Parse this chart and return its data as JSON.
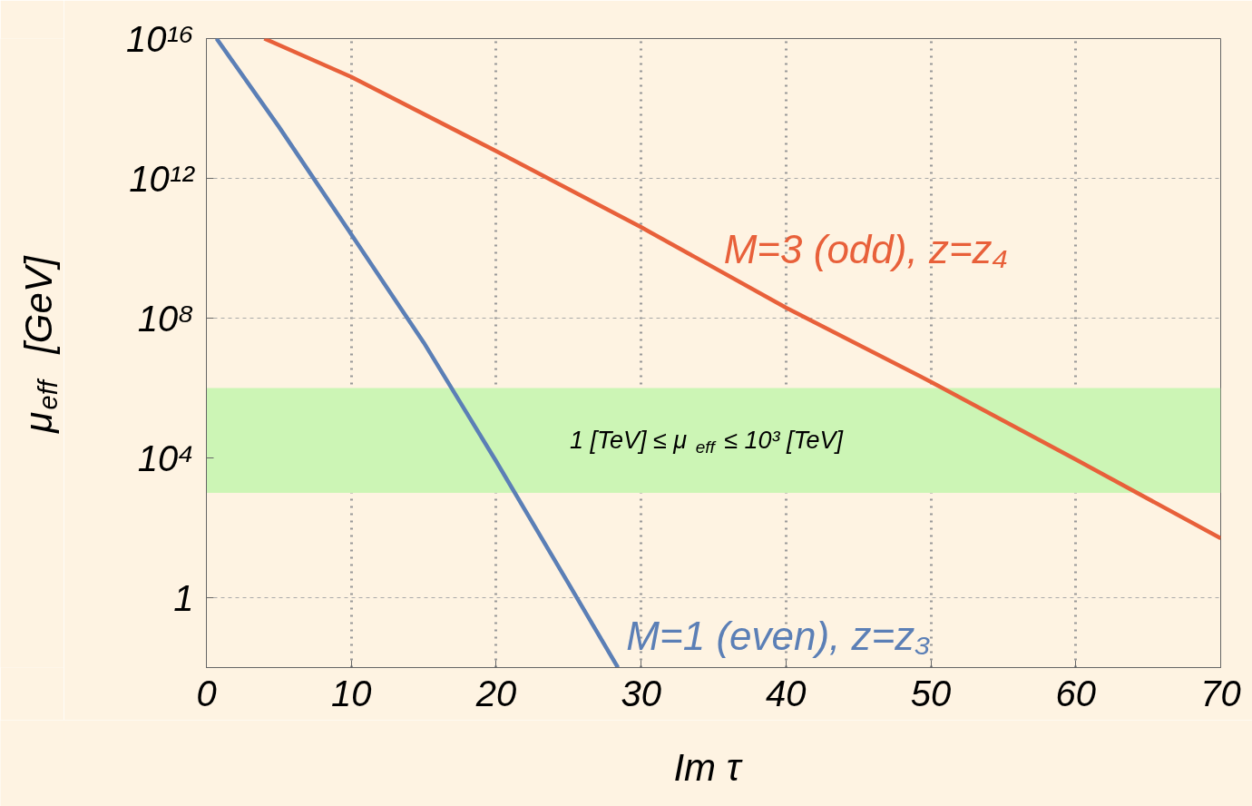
{
  "chart_data": {
    "type": "line",
    "xlabel": "Im τ",
    "ylabel": "μ$_{eff}$  [GeV]",
    "log": "y",
    "grid": true,
    "line_style": "solid",
    "xlim": [
      0,
      70
    ],
    "ylim": [
      0.01,
      1e+16
    ],
    "xticks": [
      0,
      10,
      20,
      30,
      40,
      50,
      60,
      70
    ],
    "yticks": [
      1,
      {
        "value": 10000.0,
        "label": "10⁴"
      },
      {
        "value": 100000000.0,
        "label": "10⁸"
      },
      {
        "value": 1000000000000.0,
        "label": "10¹²"
      },
      {
        "value": 1e+16,
        "label": "10¹⁶"
      }
    ],
    "bands": [
      {
        "axis": "y",
        "from": 1000.0,
        "to": 1000000.0,
        "label": "1 [TeV] ≤ μ$_{eff}$ ≤ 10³ [TeV]",
        "color": "#ccf5b5"
      }
    ],
    "series": [
      {
        "name": "M=3 (odd), z=z₄",
        "color": "#e8603a",
        "x": [
          4,
          10,
          20,
          30,
          40,
          50,
          60,
          70
        ],
        "values": [
          1e+16,
          800000000000000.0,
          6000000000000.0,
          40000000000.0,
          200000000.0,
          1500000.0,
          9000.0,
          50
        ]
      },
      {
        "name": "M=1 (even), z=z₃",
        "color": "#5b7fb6",
        "x": [
          0.7,
          5,
          10,
          15,
          20,
          25,
          28.4
        ],
        "values": [
          1e+16,
          30000000000000.0,
          25000000000.0,
          20000000.0,
          8000.0,
          2.5,
          0.01
        ]
      }
    ]
  }
}
